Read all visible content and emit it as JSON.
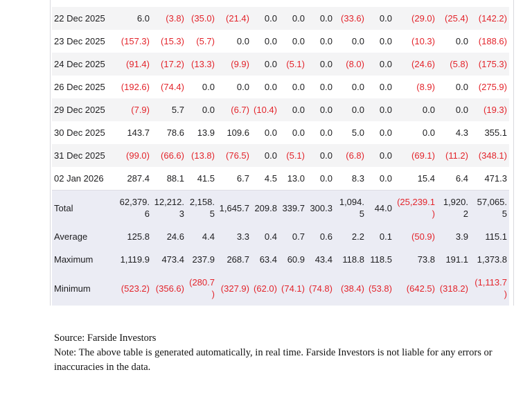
{
  "table": {
    "rows": [
      {
        "date": "22 Dec 2025",
        "values": [
          "6.0",
          "(3.8)",
          "(35.0)",
          "(21.4)",
          "0.0",
          "0.0",
          "0.0",
          "(33.6)",
          "0.0",
          "(29.0)",
          "(25.4)",
          "(142.2)"
        ]
      },
      {
        "date": "23 Dec 2025",
        "values": [
          "(157.3)",
          "(15.3)",
          "(5.7)",
          "0.0",
          "0.0",
          "0.0",
          "0.0",
          "0.0",
          "0.0",
          "(10.3)",
          "0.0",
          "(188.6)"
        ]
      },
      {
        "date": "24 Dec 2025",
        "values": [
          "(91.4)",
          "(17.2)",
          "(13.3)",
          "(9.9)",
          "0.0",
          "(5.1)",
          "0.0",
          "(8.0)",
          "0.0",
          "(24.6)",
          "(5.8)",
          "(175.3)"
        ]
      },
      {
        "date": "26 Dec 2025",
        "values": [
          "(192.6)",
          "(74.4)",
          "0.0",
          "0.0",
          "0.0",
          "0.0",
          "0.0",
          "0.0",
          "0.0",
          "(8.9)",
          "0.0",
          "(275.9)"
        ]
      },
      {
        "date": "29 Dec 2025",
        "values": [
          "(7.9)",
          "5.7",
          "0.0",
          "(6.7)",
          "(10.4)",
          "0.0",
          "0.0",
          "0.0",
          "0.0",
          "0.0",
          "0.0",
          "(19.3)"
        ]
      },
      {
        "date": "30 Dec 2025",
        "values": [
          "143.7",
          "78.6",
          "13.9",
          "109.6",
          "0.0",
          "0.0",
          "0.0",
          "5.0",
          "0.0",
          "0.0",
          "4.3",
          "355.1"
        ]
      },
      {
        "date": "31 Dec 2025",
        "values": [
          "(99.0)",
          "(66.6)",
          "(13.8)",
          "(76.5)",
          "0.0",
          "(5.1)",
          "0.0",
          "(6.8)",
          "0.0",
          "(69.1)",
          "(11.2)",
          "(348.1)"
        ]
      },
      {
        "date": "02 Jan 2026",
        "values": [
          "287.4",
          "88.1",
          "41.5",
          "6.7",
          "4.5",
          "13.0",
          "0.0",
          "8.3",
          "0.0",
          "15.4",
          "6.4",
          "471.3"
        ]
      }
    ],
    "summary": [
      {
        "label": "Total",
        "values": [
          "62,379.6",
          "12,212.3",
          "2,158.5",
          "1,645.7",
          "209.8",
          "339.7",
          "300.3",
          "1,094.5",
          "44.0",
          "(25,239.1)",
          "1,920.2",
          "57,065.5"
        ]
      },
      {
        "label": "Average",
        "values": [
          "125.8",
          "24.6",
          "4.4",
          "3.3",
          "0.4",
          "0.7",
          "0.6",
          "2.2",
          "0.1",
          "(50.9)",
          "3.9",
          "115.1"
        ]
      },
      {
        "label": "Maximum",
        "values": [
          "1,119.9",
          "473.4",
          "237.9",
          "268.7",
          "63.4",
          "60.9",
          "43.4",
          "118.8",
          "118.5",
          "73.8",
          "191.1",
          "1,373.8"
        ]
      },
      {
        "label": "Minimum",
        "values": [
          "(523.2)",
          "(356.6)",
          "(280.7)",
          "(327.9)",
          "(62.0)",
          "(74.1)",
          "(74.8)",
          "(38.4)",
          "(53.8)",
          "(642.5)",
          "(318.2)",
          "(1,113.7)"
        ]
      }
    ]
  },
  "footer": {
    "source": "Source: Farside Investors",
    "note": "Note: The above table is generated automatically, in real time. Farside Investors is not liable for any errors or inaccuracies in the data."
  },
  "colors": {
    "negative": "#e3242b",
    "stripe": "#f4f4f5",
    "summary_bg": "#ebecf4"
  }
}
